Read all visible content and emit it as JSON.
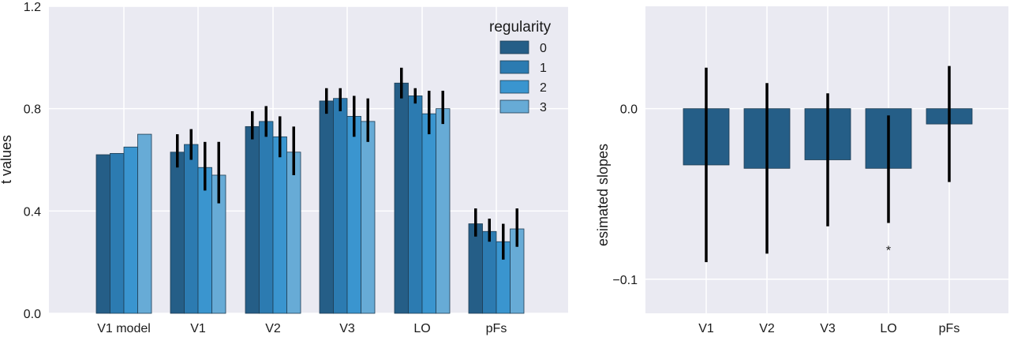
{
  "chart_data": [
    {
      "type": "bar",
      "ylabel": "t values",
      "ylim": [
        0.0,
        1.2
      ],
      "yticks": [
        "0.0",
        "0.4",
        "0.8",
        "1.2"
      ],
      "categories": [
        "V1 model",
        "V1",
        "V2",
        "V3",
        "LO",
        "pFs"
      ],
      "legend": {
        "title": "regularity",
        "placement": "top-right"
      },
      "series": [
        {
          "name": "0",
          "color": "#255e87",
          "values": [
            0.62,
            0.63,
            0.73,
            0.83,
            0.9,
            0.35
          ],
          "err_low": [
            null,
            0.57,
            0.68,
            0.78,
            0.84,
            0.3
          ],
          "err_high": [
            null,
            0.7,
            0.79,
            0.88,
            0.96,
            0.41
          ]
        },
        {
          "name": "1",
          "color": "#2c7bb1",
          "values": [
            0.625,
            0.66,
            0.75,
            0.84,
            0.85,
            0.32
          ],
          "err_low": [
            null,
            0.6,
            0.69,
            0.79,
            0.82,
            0.28
          ],
          "err_high": [
            null,
            0.72,
            0.81,
            0.88,
            0.88,
            0.37
          ]
        },
        {
          "name": "2",
          "color": "#3a95cf",
          "values": [
            0.65,
            0.57,
            0.69,
            0.77,
            0.78,
            0.28
          ],
          "err_low": [
            null,
            0.48,
            0.61,
            0.69,
            0.7,
            0.21
          ],
          "err_high": [
            null,
            0.67,
            0.77,
            0.85,
            0.87,
            0.35
          ]
        },
        {
          "name": "3",
          "color": "#67abd6",
          "values": [
            0.7,
            0.54,
            0.63,
            0.75,
            0.8,
            0.33
          ],
          "err_low": [
            null,
            0.43,
            0.54,
            0.67,
            0.74,
            0.26
          ],
          "err_high": [
            null,
            0.67,
            0.73,
            0.84,
            0.87,
            0.41
          ]
        }
      ],
      "grid": true,
      "background": "#eaeaf2"
    },
    {
      "type": "bar",
      "ylabel": "esimated slopes",
      "ylim": [
        -0.12,
        0.06
      ],
      "yticks": [
        "0.0",
        "−0.1"
      ],
      "categories": [
        "V1",
        "V2",
        "V3",
        "LO",
        "pFs"
      ],
      "series": [
        {
          "color": "#255e87",
          "values": [
            -0.033,
            -0.035,
            -0.03,
            -0.035,
            -0.009
          ],
          "err_low": [
            -0.09,
            -0.085,
            -0.069,
            -0.067,
            -0.043
          ],
          "err_high": [
            0.024,
            0.015,
            0.009,
            -0.004,
            0.025
          ]
        }
      ],
      "annotations": [
        {
          "category": "LO",
          "text": "*"
        }
      ],
      "grid": true,
      "background": "#eaeaf2"
    }
  ]
}
